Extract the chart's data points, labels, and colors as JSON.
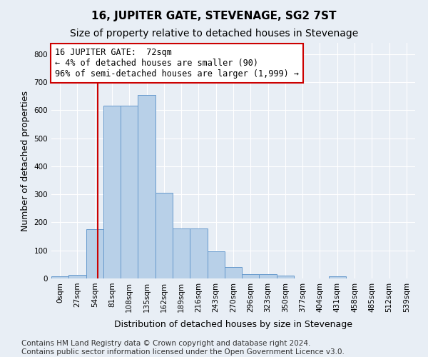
{
  "title": "16, JUPITER GATE, STEVENAGE, SG2 7ST",
  "subtitle": "Size of property relative to detached houses in Stevenage",
  "xlabel": "Distribution of detached houses by size in Stevenage",
  "ylabel": "Number of detached properties",
  "bin_labels": [
    "0sqm",
    "27sqm",
    "54sqm",
    "81sqm",
    "108sqm",
    "135sqm",
    "162sqm",
    "189sqm",
    "216sqm",
    "243sqm",
    "270sqm",
    "296sqm",
    "323sqm",
    "350sqm",
    "377sqm",
    "404sqm",
    "431sqm",
    "458sqm",
    "485sqm",
    "512sqm",
    "539sqm"
  ],
  "bar_heights": [
    8,
    13,
    175,
    615,
    615,
    655,
    305,
    178,
    178,
    97,
    40,
    15,
    15,
    10,
    0,
    0,
    8,
    0,
    0,
    0,
    0
  ],
  "bar_color": "#b8d0e8",
  "bar_edge_color": "#6699cc",
  "bar_width": 1.0,
  "ylim": [
    0,
    840
  ],
  "yticks": [
    0,
    100,
    200,
    300,
    400,
    500,
    600,
    700,
    800
  ],
  "vline_color": "#cc0000",
  "vline_x_bin": 2.666,
  "annotation_text": "16 JUPITER GATE:  72sqm\n← 4% of detached houses are smaller (90)\n96% of semi-detached houses are larger (1,999) →",
  "annotation_box_color": "white",
  "annotation_box_edge_color": "#cc0000",
  "footer_text": "Contains HM Land Registry data © Crown copyright and database right 2024.\nContains public sector information licensed under the Open Government Licence v3.0.",
  "background_color": "#e8eef5",
  "plot_background_color": "#e8eef5",
  "title_fontsize": 11,
  "subtitle_fontsize": 10,
  "xlabel_fontsize": 9,
  "ylabel_fontsize": 9,
  "tick_fontsize": 7.5,
  "annotation_fontsize": 8.5,
  "footer_fontsize": 7.5
}
